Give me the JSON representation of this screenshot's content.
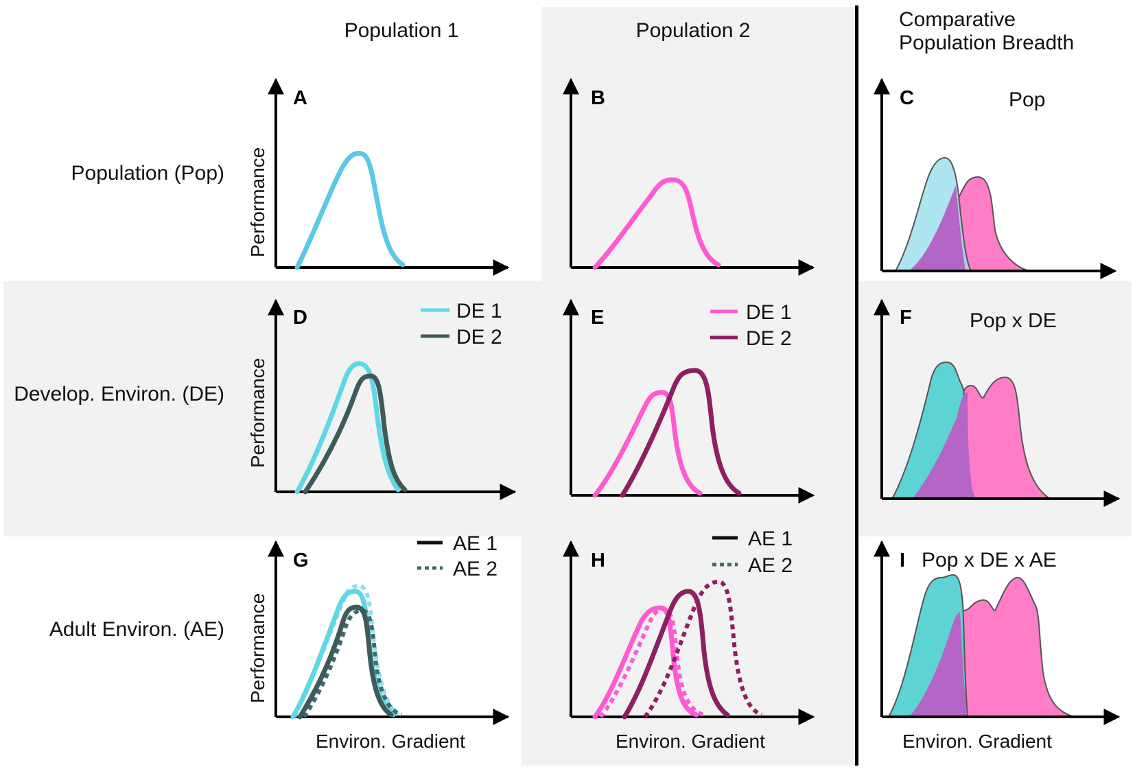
{
  "columns": [
    "Population 1",
    "Population 2",
    "Comparative\nPopulation Breadth"
  ],
  "rows": [
    "Population (Pop)",
    "Develop. Environ. (DE)",
    "Adult Environ. (AE)"
  ],
  "y_axis_label": "Performance",
  "x_axis_label": "Environ. Gradient",
  "colors": {
    "cyan": "#5bc8e6",
    "cyan_fill": "#9fe0ef",
    "teal_fill": "#5ed3d3",
    "dark_teal": "#3f5a5a",
    "dotted_teal": "#3d6b6b",
    "pink": "#ff5ad2",
    "pink_fill": "#ff7cc7",
    "purple": "#8e1f61",
    "purple_fill": "#b565c6",
    "axis": "#000000",
    "panel_bg": "#f2f2f2"
  },
  "panels": {
    "A": {
      "label": "A"
    },
    "B": {
      "label": "B"
    },
    "C": {
      "label": "C",
      "title": "Pop"
    },
    "D": {
      "label": "D",
      "legend": [
        "DE 1",
        "DE 2"
      ]
    },
    "E": {
      "label": "E",
      "legend": [
        "DE 1",
        "DE 2"
      ]
    },
    "F": {
      "label": "F",
      "title": "Pop x DE"
    },
    "G": {
      "label": "G",
      "legend": [
        "AE 1",
        "AE 2"
      ]
    },
    "H": {
      "label": "H",
      "legend": [
        "AE 1",
        "AE 2"
      ]
    },
    "I": {
      "label": "I",
      "title": "Pop x DE x AE"
    }
  }
}
